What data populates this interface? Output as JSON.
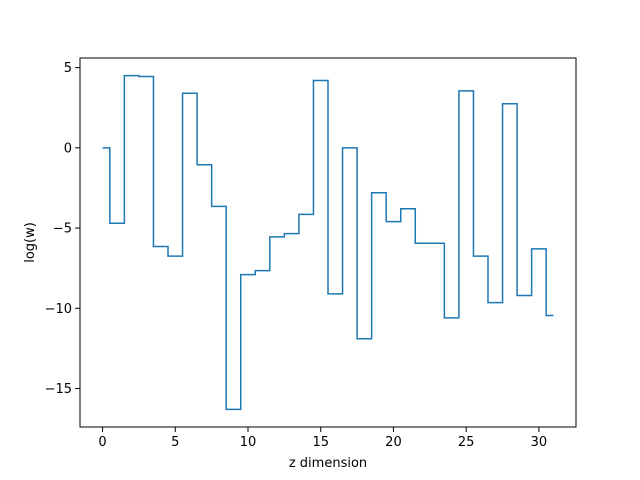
{
  "chart_data": {
    "type": "line",
    "drawstyle": "steps-mid",
    "title": "",
    "xlabel": "z dimension",
    "ylabel": "log(w)",
    "xlim": [
      -1.55,
      32.55
    ],
    "ylim": [
      -17.4,
      5.6
    ],
    "xticks": [
      0,
      5,
      10,
      15,
      20,
      25,
      30
    ],
    "yticks": [
      5,
      0,
      -5,
      -10,
      -15
    ],
    "xtick_labels": [
      "0",
      "5",
      "10",
      "15",
      "20",
      "25",
      "30"
    ],
    "ytick_labels": [
      "5",
      "0",
      "−5",
      "−10",
      "−15"
    ],
    "grid": false,
    "series_color": "#1f77b4",
    "series": [
      {
        "x": [
          0,
          1,
          2,
          3,
          4,
          5,
          6,
          7,
          8,
          9,
          10,
          11,
          12,
          13,
          14,
          15,
          16,
          17,
          18,
          19,
          20,
          21,
          22,
          23,
          24,
          25,
          26,
          27,
          28,
          29,
          30,
          31
        ],
        "values": [
          0.0,
          -4.7,
          4.5,
          4.45,
          -6.15,
          -6.75,
          3.4,
          -1.05,
          -3.65,
          -16.3,
          -7.9,
          -7.65,
          -5.55,
          -5.35,
          -4.15,
          4.2,
          -9.1,
          0.0,
          -11.9,
          -2.8,
          -4.6,
          -3.8,
          -5.95,
          -5.95,
          -10.6,
          3.55,
          -6.75,
          -9.65,
          2.75,
          -9.2,
          -6.3,
          -10.45
        ]
      }
    ]
  }
}
